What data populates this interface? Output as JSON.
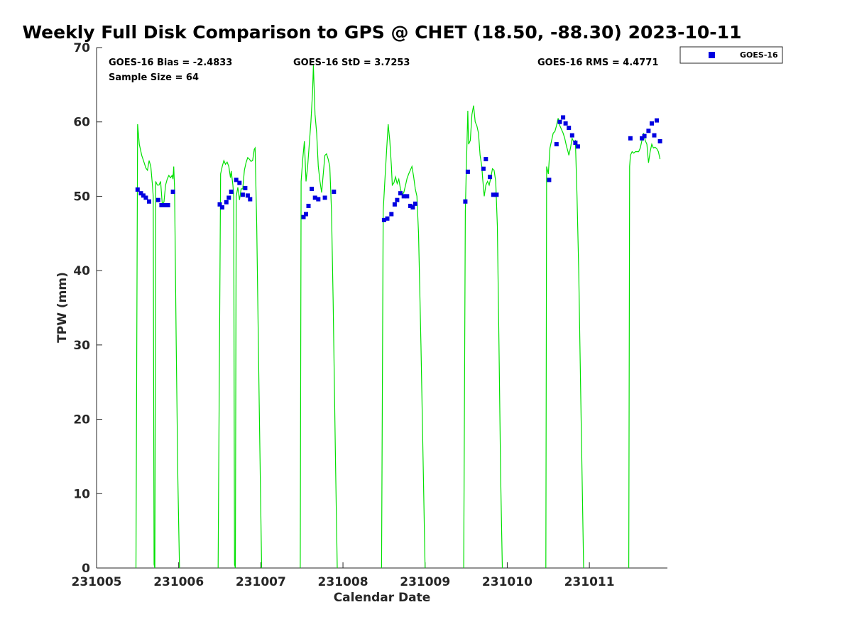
{
  "chart_data": {
    "type": "line",
    "title": "Weekly Full Disk Comparison to GPS @ CHET (18.50, -88.30) 2023-10-11",
    "xlabel": "Calendar Date",
    "ylabel": "TPW (mm)",
    "xlim": [
      0,
      6.95
    ],
    "ylim": [
      0,
      70
    ],
    "grid": false,
    "legend_position": "top-right (outside plot)",
    "x_tick_values": [
      0,
      1,
      2,
      3,
      4,
      5,
      6
    ],
    "x_tick_labels": [
      "231005",
      "231006",
      "231007",
      "231008",
      "231009",
      "231010",
      "231011"
    ],
    "y_tick_values": [
      0,
      10,
      20,
      30,
      40,
      50,
      60,
      70
    ],
    "y_tick_labels": [
      "0",
      "10",
      "20",
      "30",
      "40",
      "50",
      "60",
      "70"
    ],
    "stats": {
      "bias": "GOES-16 Bias = -2.4833",
      "sample": "Sample Size = 64",
      "std": "GOES-16 StD = 3.7253",
      "rms": "GOES-16 RMS = 4.4771"
    },
    "legend": [
      {
        "label": "GOES-16",
        "color": "#0000e0",
        "marker": "square"
      }
    ],
    "colors": {
      "gps_line": "#00e000",
      "goes_markers": "#0000e0"
    },
    "series": [
      {
        "kind": "line",
        "color": "#00e000",
        "segments": [
          [
            [
              0.48,
              0
            ],
            [
              0.5,
              59.7
            ],
            [
              0.52,
              57
            ],
            [
              0.55,
              55.5
            ],
            [
              0.58,
              54.5
            ],
            [
              0.6,
              53.8
            ],
            [
              0.62,
              53.5
            ],
            [
              0.64,
              54.8
            ],
            [
              0.66,
              54
            ],
            [
              0.68,
              51.5
            ],
            [
              0.69,
              50
            ],
            [
              0.7,
              0.5
            ],
            [
              0.71,
              0
            ],
            [
              0.72,
              52
            ],
            [
              0.74,
              51.5
            ],
            [
              0.76,
              51.5
            ],
            [
              0.78,
              52
            ],
            [
              0.8,
              49
            ],
            [
              0.82,
              49.2
            ],
            [
              0.84,
              51.5
            ],
            [
              0.86,
              52.3
            ],
            [
              0.88,
              52.8
            ],
            [
              0.9,
              52.5
            ],
            [
              0.92,
              52.8
            ],
            [
              0.93,
              52.3
            ],
            [
              0.94,
              54
            ],
            [
              0.95,
              51
            ],
            [
              0.97,
              30
            ],
            [
              0.99,
              12
            ],
            [
              1.01,
              0
            ]
          ],
          [
            [
              1.48,
              0
            ],
            [
              1.51,
              53
            ],
            [
              1.53,
              54
            ],
            [
              1.55,
              54.8
            ],
            [
              1.57,
              54.3
            ],
            [
              1.59,
              54.6
            ],
            [
              1.61,
              54
            ],
            [
              1.63,
              52.5
            ],
            [
              1.64,
              53.4
            ],
            [
              1.66,
              51.5
            ],
            [
              1.67,
              50
            ],
            [
              1.68,
              0.5
            ],
            [
              1.69,
              0
            ],
            [
              1.7,
              50
            ],
            [
              1.72,
              51.2
            ],
            [
              1.74,
              49.5
            ],
            [
              1.76,
              51
            ],
            [
              1.78,
              51
            ],
            [
              1.8,
              53.5
            ],
            [
              1.82,
              54.5
            ],
            [
              1.84,
              55.2
            ],
            [
              1.86,
              55
            ],
            [
              1.88,
              54.7
            ],
            [
              1.9,
              54.8
            ],
            [
              1.92,
              56.3
            ],
            [
              1.93,
              56.5
            ],
            [
              1.95,
              46
            ],
            [
              1.98,
              22
            ],
            [
              2.01,
              0
            ]
          ],
          [
            [
              2.48,
              0
            ],
            [
              2.49,
              52
            ],
            [
              2.51,
              55
            ],
            [
              2.53,
              57.4
            ],
            [
              2.55,
              52
            ],
            [
              2.57,
              54
            ],
            [
              2.59,
              57
            ],
            [
              2.61,
              60
            ],
            [
              2.63,
              64
            ],
            [
              2.64,
              67.6
            ],
            [
              2.66,
              61
            ],
            [
              2.68,
              58.5
            ],
            [
              2.7,
              54
            ],
            [
              2.72,
              52
            ],
            [
              2.74,
              50.5
            ],
            [
              2.76,
              53
            ],
            [
              2.78,
              55.5
            ],
            [
              2.8,
              55.7
            ],
            [
              2.82,
              55
            ],
            [
              2.84,
              54
            ],
            [
              2.86,
              48
            ],
            [
              2.88,
              36
            ],
            [
              2.91,
              14
            ],
            [
              2.93,
              0
            ]
          ],
          [
            [
              3.47,
              0
            ],
            [
              3.49,
              48
            ],
            [
              3.51,
              52
            ],
            [
              3.53,
              56
            ],
            [
              3.55,
              59.7
            ],
            [
              3.57,
              57.5
            ],
            [
              3.59,
              54
            ],
            [
              3.6,
              51.5
            ],
            [
              3.62,
              51.8
            ],
            [
              3.64,
              52.6
            ],
            [
              3.66,
              51.7
            ],
            [
              3.68,
              52.3
            ],
            [
              3.7,
              51
            ],
            [
              3.72,
              50.2
            ],
            [
              3.74,
              50.5
            ],
            [
              3.76,
              51.4
            ],
            [
              3.78,
              52.4
            ],
            [
              3.8,
              53
            ],
            [
              3.82,
              53.5
            ],
            [
              3.84,
              54
            ],
            [
              3.86,
              52.7
            ],
            [
              3.88,
              51
            ],
            [
              3.9,
              50
            ],
            [
              3.92,
              45
            ],
            [
              3.95,
              30
            ],
            [
              3.98,
              12
            ],
            [
              4.0,
              0
            ]
          ],
          [
            [
              4.47,
              0
            ],
            [
              4.49,
              48
            ],
            [
              4.5,
              53
            ],
            [
              4.52,
              61.5
            ],
            [
              4.53,
              57
            ],
            [
              4.55,
              57.5
            ],
            [
              4.57,
              61
            ],
            [
              4.59,
              62.2
            ],
            [
              4.61,
              60
            ],
            [
              4.63,
              59.5
            ],
            [
              4.65,
              58.5
            ],
            [
              4.67,
              55.5
            ],
            [
              4.69,
              54
            ],
            [
              4.7,
              52.5
            ],
            [
              4.72,
              50
            ],
            [
              4.74,
              51.5
            ],
            [
              4.76,
              52
            ],
            [
              4.78,
              51.5
            ],
            [
              4.8,
              52.5
            ],
            [
              4.82,
              53.7
            ],
            [
              4.84,
              53.5
            ],
            [
              4.86,
              52
            ],
            [
              4.88,
              46
            ],
            [
              4.9,
              30
            ],
            [
              4.92,
              12
            ],
            [
              4.94,
              0
            ]
          ],
          [
            [
              5.47,
              0
            ],
            [
              5.48,
              54
            ],
            [
              5.5,
              53
            ],
            [
              5.52,
              56.5
            ],
            [
              5.54,
              57.5
            ],
            [
              5.56,
              58.5
            ],
            [
              5.58,
              58.7
            ],
            [
              5.6,
              59.5
            ],
            [
              5.62,
              60.5
            ],
            [
              5.64,
              59.5
            ],
            [
              5.66,
              59
            ],
            [
              5.68,
              58.5
            ],
            [
              5.7,
              57.8
            ],
            [
              5.72,
              56.8
            ],
            [
              5.74,
              56
            ],
            [
              5.75,
              55.5
            ],
            [
              5.77,
              56.5
            ],
            [
              5.79,
              57.8
            ],
            [
              5.81,
              57.3
            ],
            [
              5.83,
              57.5
            ],
            [
              5.85,
              50
            ],
            [
              5.87,
              40
            ],
            [
              5.9,
              20
            ],
            [
              5.93,
              0
            ]
          ],
          [
            [
              6.48,
              0
            ],
            [
              6.49,
              54
            ],
            [
              6.5,
              55.5
            ],
            [
              6.52,
              56
            ],
            [
              6.54,
              55.8
            ],
            [
              6.56,
              56
            ],
            [
              6.58,
              56
            ],
            [
              6.6,
              56
            ],
            [
              6.62,
              56.5
            ],
            [
              6.64,
              57.5
            ],
            [
              6.66,
              58.5
            ],
            [
              6.68,
              57.5
            ],
            [
              6.7,
              57
            ],
            [
              6.72,
              54.5
            ],
            [
              6.74,
              56
            ],
            [
              6.76,
              57
            ],
            [
              6.78,
              56.5
            ],
            [
              6.8,
              56.6
            ],
            [
              6.82,
              56.4
            ],
            [
              6.84,
              56
            ],
            [
              6.86,
              55
            ]
          ]
        ]
      },
      {
        "kind": "scatter",
        "name": "GOES-16",
        "color": "#0000e0",
        "points": [
          [
            0.5,
            50.9
          ],
          [
            0.54,
            50.4
          ],
          [
            0.57,
            50.1
          ],
          [
            0.6,
            49.8
          ],
          [
            0.64,
            49.3
          ],
          [
            0.75,
            49.5
          ],
          [
            0.79,
            48.8
          ],
          [
            0.83,
            48.8
          ],
          [
            0.87,
            48.8
          ],
          [
            0.93,
            50.6
          ],
          [
            1.5,
            48.9
          ],
          [
            1.53,
            48.5
          ],
          [
            1.58,
            49.2
          ],
          [
            1.61,
            49.8
          ],
          [
            1.64,
            50.6
          ],
          [
            1.7,
            52.2
          ],
          [
            1.74,
            51.8
          ],
          [
            1.78,
            50.2
          ],
          [
            1.81,
            51.1
          ],
          [
            1.84,
            50.1
          ],
          [
            1.87,
            49.6
          ],
          [
            2.52,
            47.2
          ],
          [
            2.55,
            47.6
          ],
          [
            2.58,
            48.7
          ],
          [
            2.62,
            51.0
          ],
          [
            2.66,
            49.8
          ],
          [
            2.7,
            49.6
          ],
          [
            2.78,
            49.8
          ],
          [
            2.89,
            50.6
          ],
          [
            3.5,
            46.8
          ],
          [
            3.54,
            47.0
          ],
          [
            3.59,
            47.6
          ],
          [
            3.63,
            48.9
          ],
          [
            3.66,
            49.5
          ],
          [
            3.7,
            50.4
          ],
          [
            3.74,
            50.0
          ],
          [
            3.78,
            50.0
          ],
          [
            3.82,
            48.7
          ],
          [
            3.85,
            48.5
          ],
          [
            3.88,
            49.0
          ],
          [
            4.49,
            49.3
          ],
          [
            4.52,
            53.3
          ],
          [
            4.71,
            53.7
          ],
          [
            4.74,
            55.0
          ],
          [
            4.79,
            52.6
          ],
          [
            4.83,
            50.2
          ],
          [
            4.87,
            50.2
          ],
          [
            5.51,
            52.2
          ],
          [
            5.6,
            57.0
          ],
          [
            5.64,
            60.0
          ],
          [
            5.68,
            60.6
          ],
          [
            5.71,
            59.8
          ],
          [
            5.75,
            59.2
          ],
          [
            5.79,
            58.2
          ],
          [
            5.83,
            57.2
          ],
          [
            5.86,
            56.7
          ],
          [
            6.5,
            57.8
          ],
          [
            6.64,
            57.8
          ],
          [
            6.67,
            58.1
          ],
          [
            6.72,
            58.8
          ],
          [
            6.76,
            59.8
          ],
          [
            6.79,
            58.2
          ],
          [
            6.82,
            60.2
          ],
          [
            6.86,
            57.4
          ]
        ]
      }
    ]
  }
}
